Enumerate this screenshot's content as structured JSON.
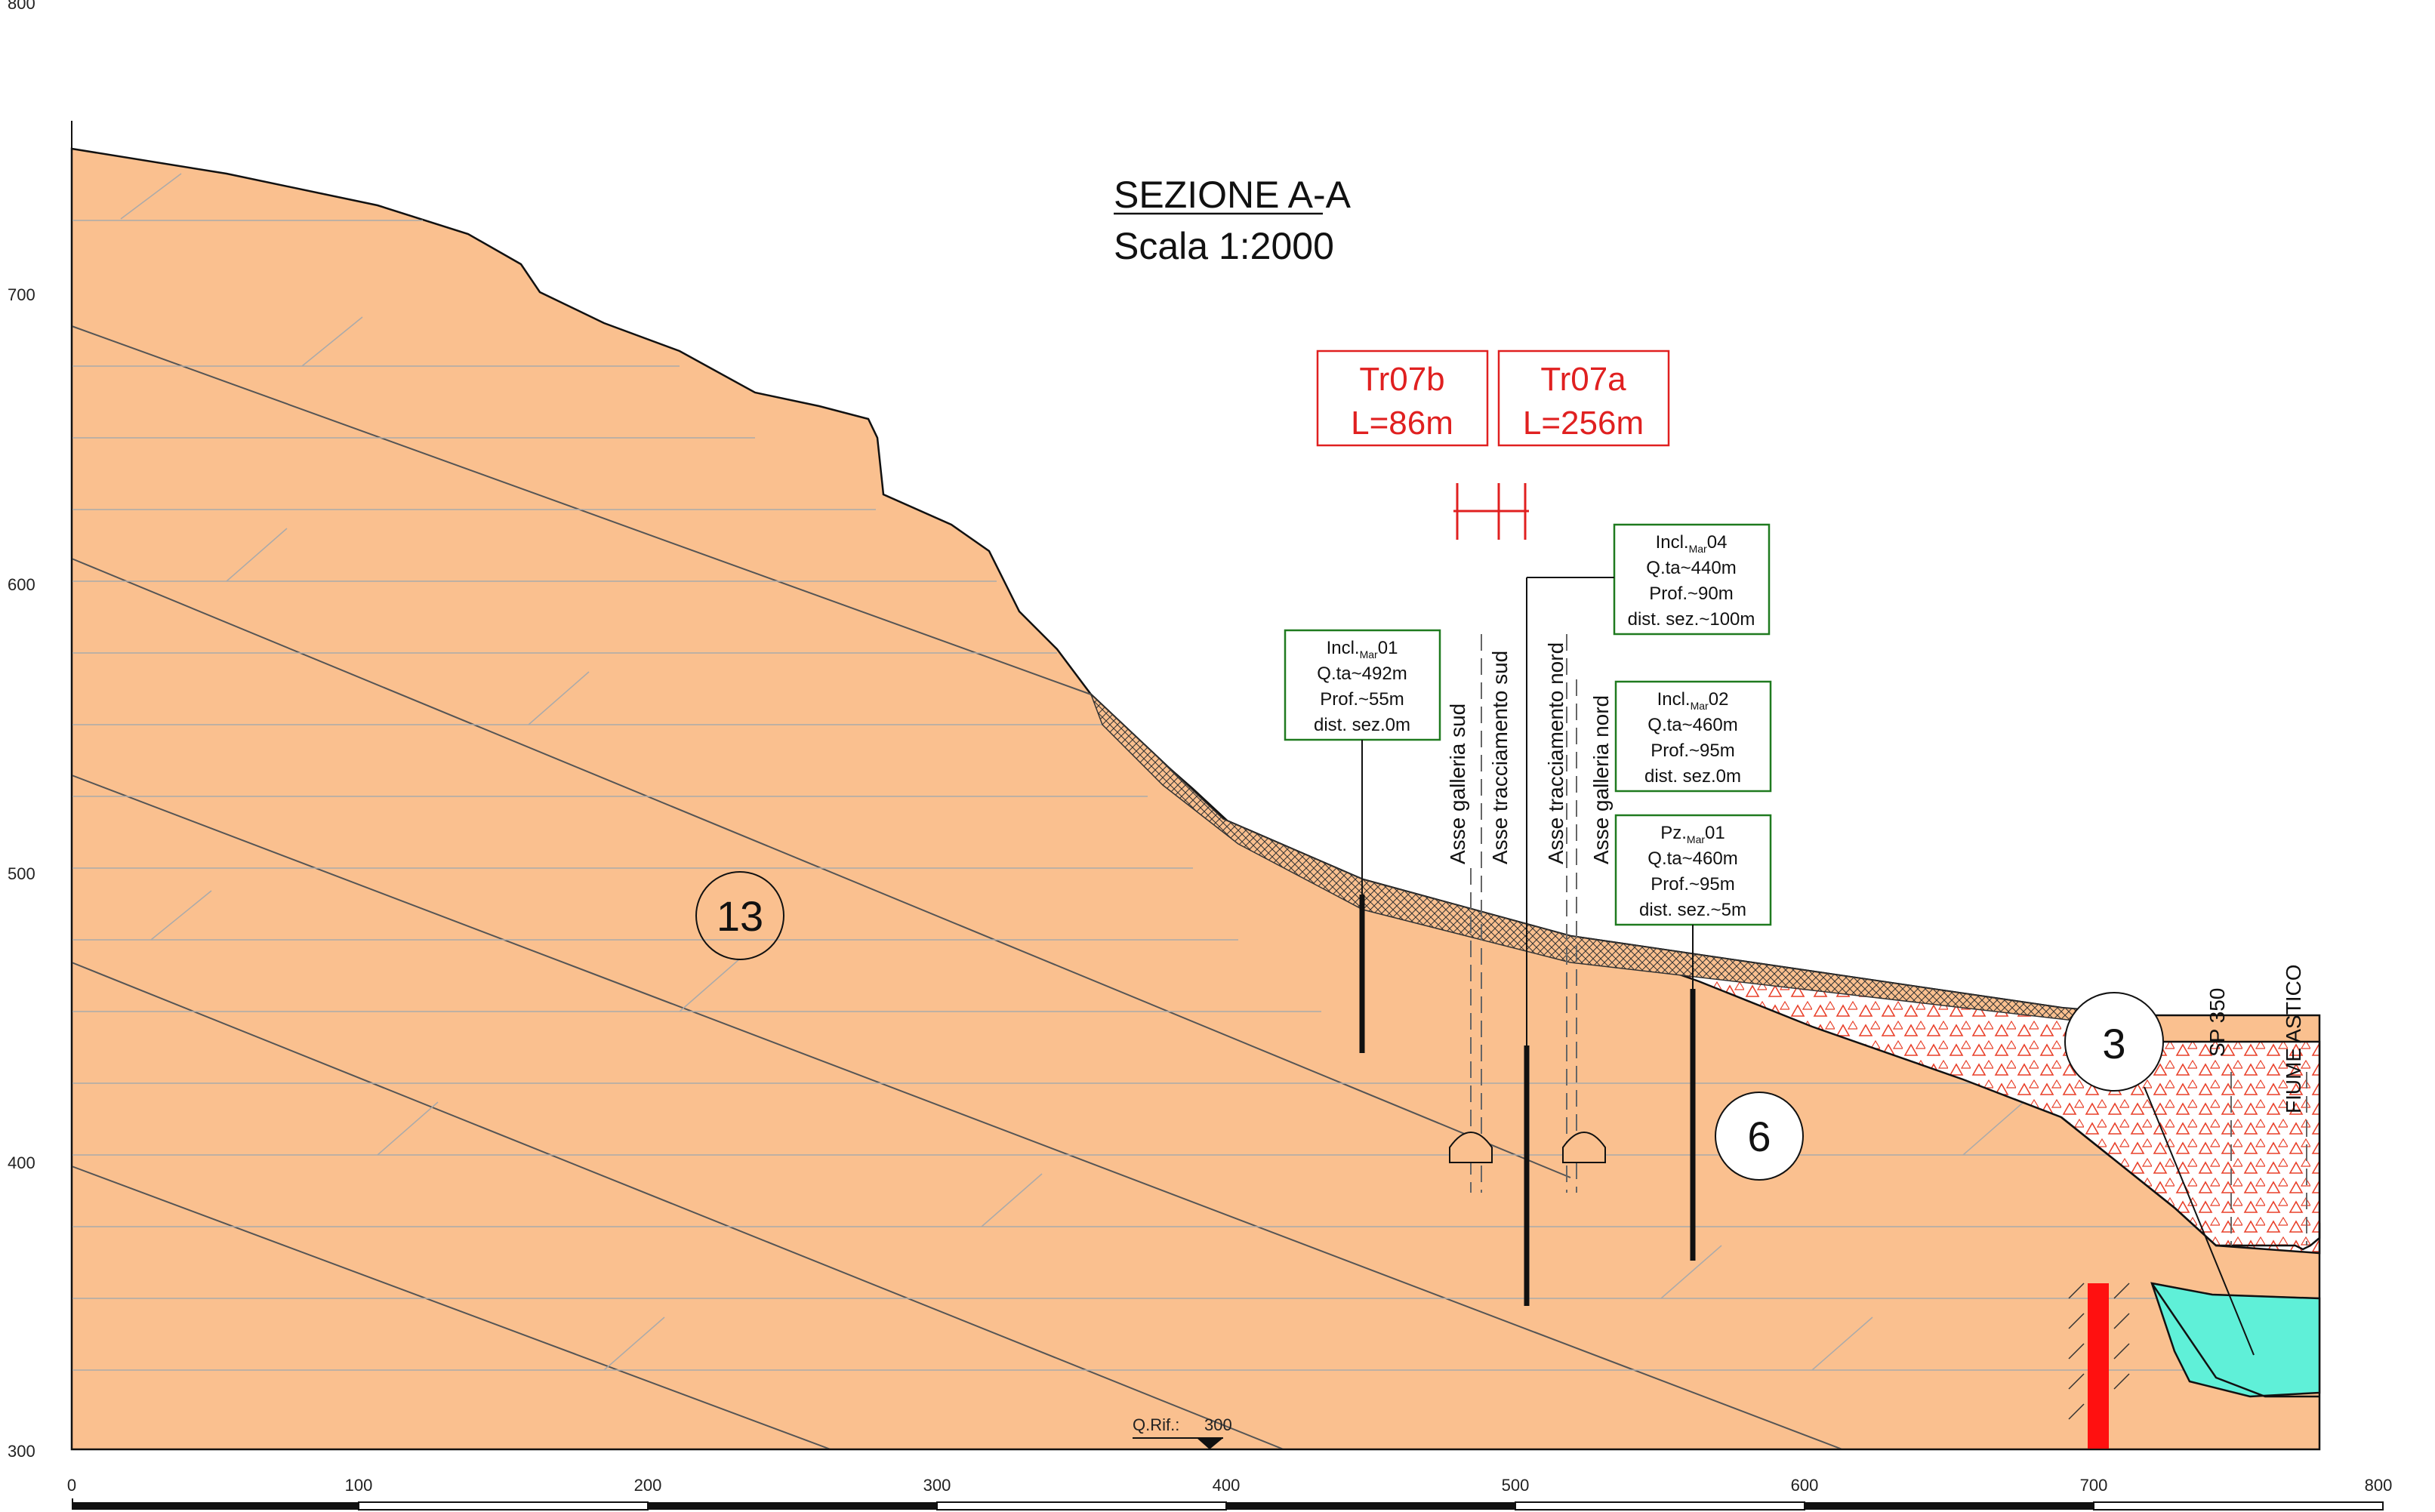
{
  "title": "SEZIONE A-A",
  "subtitle": "Scala 1:2000",
  "y_axis": {
    "ticks": [
      "800",
      "700",
      "600",
      "500",
      "400",
      "300"
    ]
  },
  "x_axis": {
    "ticks": [
      "0",
      "100",
      "200",
      "300",
      "400",
      "500",
      "600",
      "700",
      "800"
    ]
  },
  "reference": {
    "label": "Q.Rif.:",
    "value": "300"
  },
  "tunnels": [
    {
      "name": "Tr07b",
      "length": "L=86m"
    },
    {
      "name": "Tr07a",
      "length": "L=256m"
    }
  ],
  "boreholes": [
    {
      "id": "incl01",
      "name": "Incl.",
      "sub": "Mar",
      "num": "01",
      "quota": "Q.ta~492m",
      "depth": "Prof.~55m",
      "dist": "dist. sez.0m"
    },
    {
      "id": "incl04",
      "name": "Incl.",
      "sub": "Mar",
      "num": "04",
      "quota": "Q.ta~440m",
      "depth": "Prof.~90m",
      "dist": "dist. sez.~100m"
    },
    {
      "id": "incl02",
      "name": "Incl.",
      "sub": "Mar",
      "num": "02",
      "quota": "Q.ta~460m",
      "depth": "Prof.~95m",
      "dist": "dist. sez.0m"
    },
    {
      "id": "pz01",
      "name": "Pz.",
      "sub": "Mar",
      "num": "01",
      "quota": "Q.ta~460m",
      "depth": "Prof.~95m",
      "dist": "dist. sez.~5m"
    }
  ],
  "axis_labels": [
    "Asse galleria sud",
    "Asse tracciamento sud",
    "Asse tracciamento nord",
    "Asse galleria nord",
    "SP 350",
    "FIUME ASTICO"
  ],
  "units": [
    "13",
    "6",
    "3"
  ],
  "colors": {
    "bedrock": "#fac08f",
    "debris_marks": "#e8402a",
    "water": "#5ff0d8",
    "tunnel_box": "#e02020",
    "borehole_box": "#1f7a1f",
    "ink": "#111111"
  }
}
